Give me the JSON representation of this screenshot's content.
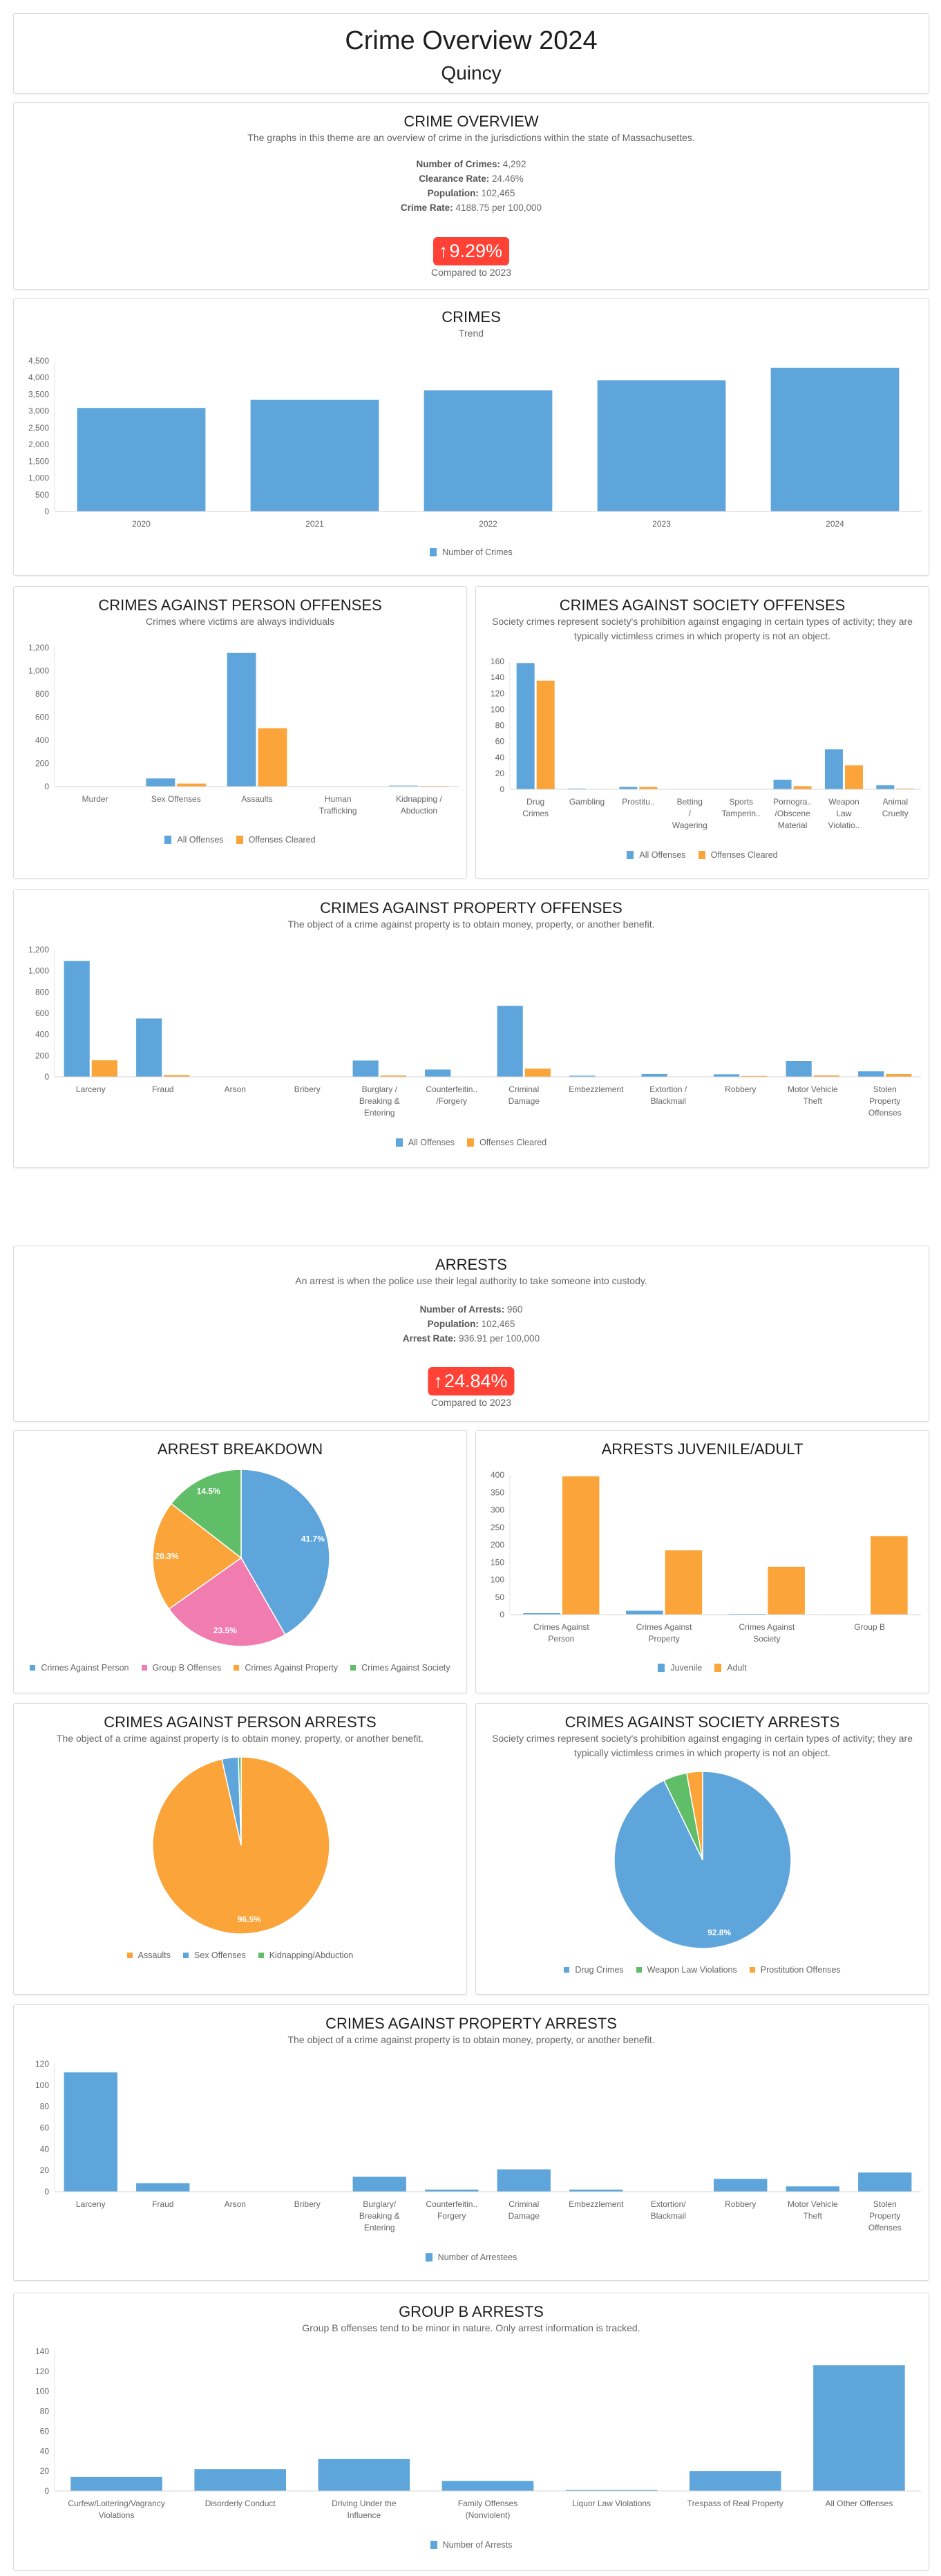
{
  "header": {
    "title": "Crime Overview 2024",
    "subtitle": "Quincy"
  },
  "overview": {
    "title": "CRIME OVERVIEW",
    "description": "The graphs in this theme are an overview of crime in the jurisdictions within the state of Massachusettes.",
    "stats": [
      {
        "label": "Number of Crimes:",
        "value": "4,292"
      },
      {
        "label": "Clearance Rate:",
        "value": "24.46%"
      },
      {
        "label": "Population:",
        "value": "102,465"
      },
      {
        "label": "Crime Rate:",
        "value": "4188.75 per 100,000"
      }
    ],
    "change": {
      "icon": "arrow-up-icon",
      "value": "9.29%",
      "note": "Compared to 2023",
      "color": "#ff4136"
    }
  },
  "arrests": {
    "title": "ARRESTS",
    "description": "An arrest is when the police use their legal authority to take someone into custody.",
    "stats": [
      {
        "label": "Number of Arrests:",
        "value": "960"
      },
      {
        "label": "Population:",
        "value": "102,465"
      },
      {
        "label": "Arrest Rate:",
        "value": "936.91 per 100,000"
      }
    ],
    "change": {
      "icon": "arrow-up-icon",
      "value": "24.84%",
      "note": "Compared to 2023",
      "color": "#ff4136"
    }
  },
  "colors": {
    "blue": "#5DA5DA",
    "orange": "#FAA43A",
    "pink": "#F17CB0",
    "green": "#60BD68"
  },
  "chart_data": [
    {
      "id": "crimes",
      "type": "bar",
      "title": "CRIMES",
      "subtitle": "Trend",
      "categories": [
        "2020",
        "2021",
        "2022",
        "2023",
        "2024"
      ],
      "series": [
        {
          "name": "Number of Crimes",
          "color": "#5DA5DA",
          "values": [
            3092,
            3332,
            3620,
            3916,
            4292
          ]
        }
      ],
      "ylim": [
        0,
        4500
      ],
      "ytick_step": 500,
      "legend": "bottom"
    },
    {
      "id": "person-offenses",
      "type": "bar",
      "title": "CRIMES AGAINST PERSON OFFENSES",
      "subtitle": "Crimes where victims are always individuals",
      "categories": [
        "Murder",
        "Sex Offenses",
        "Assaults",
        "Human\nTrafficking",
        "Kidnapping /\nAbduction"
      ],
      "series": [
        {
          "name": "All Offenses",
          "color": "#5DA5DA",
          "values": [
            0,
            70,
            1154,
            0,
            8
          ]
        },
        {
          "name": "Offenses Cleared",
          "color": "#FAA43A",
          "values": [
            0,
            26,
            504,
            0,
            6
          ]
        }
      ],
      "ylim": [
        0,
        1200
      ],
      "ytick_step": 200,
      "legend": "bottom"
    },
    {
      "id": "society-offenses",
      "type": "bar",
      "title": "CRIMES AGAINST SOCIETY OFFENSES",
      "subtitle": "Society crimes represent society's prohibition against engaging in certain types of activity; they are typically victimless crimes in which property is not an object.",
      "categories": [
        "Drug\nCrimes",
        "Gambling",
        "Prostitu..",
        "Betting\n/\nWagering",
        "Sports\nTamperin..",
        "Pornogra..\n/Obscene\nMaterial",
        "Weapon\nLaw\nViolatio..",
        "Animal\nCruelty"
      ],
      "series": [
        {
          "name": "All Offenses",
          "color": "#5DA5DA",
          "values": [
            158,
            1,
            3,
            0,
            0,
            12,
            50,
            5
          ]
        },
        {
          "name": "Offenses Cleared",
          "color": "#FAA43A",
          "values": [
            136,
            0,
            3,
            0,
            0,
            4,
            30,
            1
          ]
        }
      ],
      "ylim": [
        0,
        160
      ],
      "ytick_step": 20,
      "legend": "bottom"
    },
    {
      "id": "property-offenses",
      "type": "bar",
      "title": "CRIMES AGAINST PROPERTY OFFENSES",
      "subtitle": "The object of a crime against property is to obtain money, property, or another benefit.",
      "categories": [
        "Larceny",
        "Fraud",
        "Arson",
        "Bribery",
        "Burglary /\nBreaking &\nEntering",
        "Counterfeitin..\n/Forgery",
        "Criminal\nDamage",
        "Embezzlement",
        "Extortion /\nBlackmail",
        "Robbery",
        "Motor Vehicle\nTheft",
        "Stolen\nProperty\nOffenses"
      ],
      "series": [
        {
          "name": "All Offenses",
          "color": "#5DA5DA",
          "values": [
            1094,
            551,
            2,
            0,
            154,
            69,
            670,
            11,
            26,
            24,
            150,
            52
          ]
        },
        {
          "name": "Offenses Cleared",
          "color": "#FAA43A",
          "values": [
            156,
            17,
            0,
            0,
            13,
            2,
            78,
            1,
            0,
            8,
            14,
            26
          ]
        }
      ],
      "ylim": [
        0,
        1200
      ],
      "ytick_step": 200,
      "legend": "bottom"
    },
    {
      "id": "arrest-breakdown",
      "type": "pie",
      "title": "ARREST BREAKDOWN",
      "categories": [
        "Crimes Against Person",
        "Group B Offenses",
        "Crimes Against Property",
        "Crimes Against Society"
      ],
      "values": [
        41.7,
        23.5,
        20.3,
        14.5
      ],
      "colors": [
        "#5DA5DA",
        "#F17CB0",
        "#FAA43A",
        "#60BD68"
      ],
      "unit": "%",
      "legend": "bottom"
    },
    {
      "id": "juvenile-adult",
      "type": "bar",
      "title": "ARRESTS JUVENILE/ADULT",
      "categories": [
        "Crimes Against\nPerson",
        "Crimes Against\nProperty",
        "Crimes Against\nSociety",
        "Group B"
      ],
      "series": [
        {
          "name": "Juvenile",
          "color": "#5DA5DA",
          "values": [
            4,
            11,
            2,
            1
          ]
        },
        {
          "name": "Adult",
          "color": "#FAA43A",
          "values": [
            396,
            184,
            137,
            225
          ]
        }
      ],
      "ylim": [
        0,
        400
      ],
      "ytick_step": 50,
      "legend": "bottom"
    },
    {
      "id": "person-arrests",
      "type": "pie",
      "title": "CRIMES AGAINST PERSON ARRESTS",
      "subtitle": "The object of a crime against property is to obtain money, property, or another benefit.",
      "categories": [
        "Assaults",
        "Sex Offenses",
        "Kidnapping/Abduction"
      ],
      "values": [
        96.5,
        3.0,
        0.5
      ],
      "colors": [
        "#FAA43A",
        "#5DA5DA",
        "#60BD68"
      ],
      "unit": "%",
      "legend": "bottom"
    },
    {
      "id": "society-arrests",
      "type": "pie",
      "title": "CRIMES AGAINST SOCIETY ARRESTS",
      "subtitle": "Society crimes represent society's prohibition against engaging in certain types of activity; they are typically victimless crimes in which property is not an object.",
      "categories": [
        "Drug Crimes",
        "Weapon Law Violations",
        "Prostitution Offenses"
      ],
      "values": [
        92.8,
        4.3,
        2.9
      ],
      "colors": [
        "#5DA5DA",
        "#60BD68",
        "#FAA43A"
      ],
      "unit": "%",
      "legend": "bottom"
    },
    {
      "id": "property-arrests",
      "type": "bar",
      "title": "CRIMES AGAINST PROPERTY ARRESTS",
      "subtitle": "The object of a crime against property is to obtain money, property, or another benefit.",
      "categories": [
        "Larceny",
        "Fraud",
        "Arson",
        "Bribery",
        "Burglary/\nBreaking &\nEntering",
        "Counterfeitin..\nForgery",
        "Criminal\nDamage",
        "Embezzlement",
        "Extortion/\nBlackmail",
        "Robbery",
        "Motor Vehicle\nTheft",
        "Stolen\nProperty\nOffenses"
      ],
      "series": [
        {
          "name": "Number of Arrestees",
          "color": "#5DA5DA",
          "values": [
            112,
            8,
            0,
            0,
            14,
            2,
            21,
            2,
            0,
            12,
            5,
            18
          ]
        }
      ],
      "ylim": [
        0,
        120
      ],
      "ytick_step": 20,
      "legend": "bottom"
    },
    {
      "id": "group-b-arrests",
      "type": "bar",
      "title": "GROUP B ARRESTS",
      "subtitle": "Group B offenses tend to be minor in nature. Only arrest information is tracked.",
      "categories": [
        "Curfew/Loitering/Vagrancy\nViolations",
        "Disorderly Conduct",
        "Driving Under the\nInfluence",
        "Family Offenses\n(Nonviolent)",
        "Liquor Law Violations",
        "Trespass of Real Property",
        "All Other Offenses"
      ],
      "series": [
        {
          "name": "Number of Arrests",
          "color": "#5DA5DA",
          "values": [
            14,
            22,
            32,
            10,
            1,
            20,
            126
          ]
        }
      ],
      "ylim": [
        0,
        140
      ],
      "ytick_step": 20,
      "legend": "bottom"
    }
  ]
}
